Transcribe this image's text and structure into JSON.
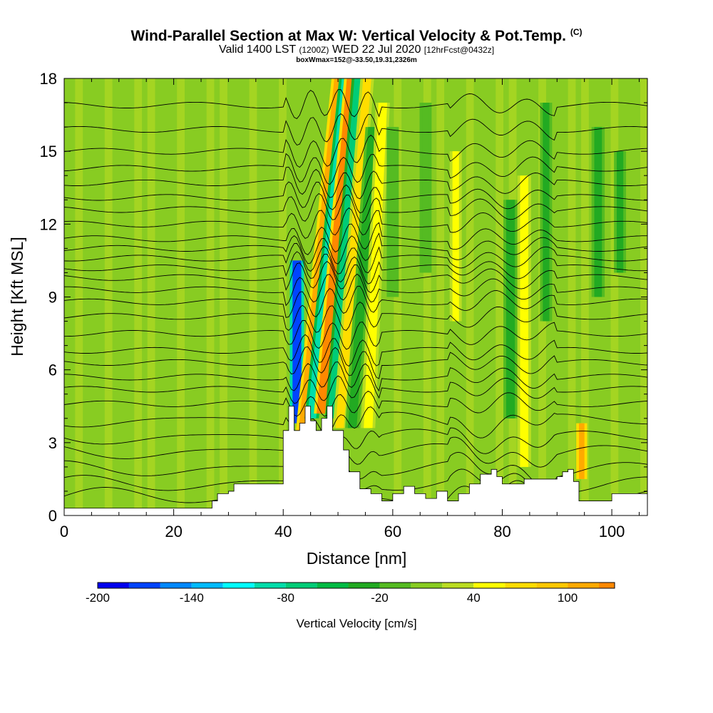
{
  "header": {
    "title": "Wind-Parallel Section at Max W: Vertical Velocity & Pot.Temp.",
    "copyright_mark": "(C)",
    "valid_prefix": "Valid 1400 LST",
    "valid_utc": "(1200Z)",
    "valid_date": "WED 22 Jul 2020",
    "forecast_info": "[12hrFcst@0432z]",
    "box_info": "boxWmax=152@-33.50,19.31,2326m"
  },
  "chart_data": {
    "type": "heatmap",
    "xlabel": "Distance [nm]",
    "ylabel": "Height [Kft MSL]",
    "xlim": [
      0,
      106.5
    ],
    "ylim": [
      0,
      18
    ],
    "x_ticks": [
      0,
      20,
      40,
      60,
      80,
      100
    ],
    "y_ticks": [
      0,
      3,
      6,
      9,
      12,
      15,
      18
    ],
    "background_level_cm_s": 10,
    "updraft_downdraft_bands": [
      {
        "x_center": 42.5,
        "x_width": 1.6,
        "y_from": 3.8,
        "y_to": 10.5,
        "w": -170
      },
      {
        "x_center": 43.5,
        "x_width": 1.4,
        "y_from": 3.5,
        "y_to": 18,
        "w": 110,
        "slope": 0.45
      },
      {
        "x_center": 45.2,
        "x_width": 1.6,
        "y_from": 4.0,
        "y_to": 18,
        "w": -100,
        "slope": 0.45
      },
      {
        "x_center": 47.0,
        "x_width": 1.8,
        "y_from": 4.2,
        "y_to": 18,
        "w": 130,
        "slope": 0.4
      },
      {
        "x_center": 48.8,
        "x_width": 1.4,
        "y_from": 4.0,
        "y_to": 18,
        "w": -70,
        "slope": 0.35
      },
      {
        "x_center": 50.3,
        "x_width": 1.5,
        "y_from": 3.6,
        "y_to": 18,
        "w": 60,
        "slope": 0.35
      },
      {
        "x_center": 52.6,
        "x_width": 1.6,
        "y_from": 3.6,
        "y_to": 16,
        "w": -40,
        "slope": 0.3
      },
      {
        "x_center": 55.5,
        "x_width": 1.6,
        "y_from": 3.6,
        "y_to": 17,
        "w": 50,
        "slope": 0.2
      },
      {
        "x_center": 60.0,
        "x_width": 1.2,
        "y_from": 9,
        "y_to": 16,
        "w": -20
      },
      {
        "x_center": 66.0,
        "x_width": 1.2,
        "y_from": 10,
        "y_to": 17,
        "w": -20
      },
      {
        "x_center": 71.5,
        "x_width": 1.2,
        "y_from": 8,
        "y_to": 15,
        "w": 40
      },
      {
        "x_center": 81.5,
        "x_width": 1.6,
        "y_from": 4,
        "y_to": 13,
        "w": -40
      },
      {
        "x_center": 84.0,
        "x_width": 1.5,
        "y_from": 2,
        "y_to": 14,
        "w": 50
      },
      {
        "x_center": 88.0,
        "x_width": 1.2,
        "y_from": 8,
        "y_to": 17,
        "w": -30
      },
      {
        "x_center": 94.5,
        "x_width": 1.0,
        "y_from": 1.5,
        "y_to": 3.8,
        "w": 100
      },
      {
        "x_center": 97.5,
        "x_width": 1.4,
        "y_from": 9,
        "y_to": 16,
        "w": -40
      },
      {
        "x_center": 101.5,
        "x_width": 1.2,
        "y_from": 10,
        "y_to": 15,
        "w": -30
      }
    ],
    "potential_temperature_isentropes_base_kft": [
      0.8,
      1.3,
      1.9,
      2.6,
      3.2,
      3.9,
      4.6,
      5.2,
      5.7,
      6.3,
      6.8,
      7.5,
      8.2,
      8.8,
      9.3,
      9.8,
      10.2,
      10.6,
      11.0,
      11.4,
      12.0,
      12.6,
      13.1,
      13.7,
      14.3,
      15.0,
      15.9,
      16.9
    ],
    "terrain_profile": {
      "x": [
        0,
        27,
        27,
        28,
        28,
        30,
        30,
        31,
        31,
        40,
        40,
        41,
        41,
        42,
        42,
        43,
        43,
        44,
        44,
        45,
        45,
        46,
        46,
        47,
        47,
        48,
        48,
        49,
        49,
        51,
        51,
        52,
        52,
        54,
        54,
        56,
        56,
        58,
        58,
        60,
        60,
        62,
        62,
        64,
        64,
        66,
        66,
        68,
        68,
        70,
        70,
        72,
        72,
        74,
        74,
        76,
        76,
        78,
        78,
        79,
        79,
        80,
        80,
        82,
        82,
        84,
        84,
        90,
        90,
        91,
        91,
        92,
        92,
        93,
        93,
        94,
        94,
        100,
        100,
        106.5
      ],
      "y": [
        0.3,
        0.3,
        0.6,
        0.6,
        0.9,
        0.9,
        1.0,
        1.0,
        1.3,
        1.3,
        3.5,
        3.5,
        4.5,
        4.5,
        3.5,
        3.5,
        3.8,
        3.8,
        4.5,
        4.5,
        3.9,
        3.9,
        3.5,
        3.5,
        4.0,
        4.0,
        4.5,
        4.5,
        3.5,
        3.5,
        2.7,
        2.7,
        1.8,
        1.8,
        1.1,
        1.1,
        0.9,
        0.9,
        0.6,
        0.6,
        0.9,
        0.9,
        1.2,
        1.2,
        0.9,
        0.9,
        0.7,
        0.7,
        1.0,
        1.0,
        0.6,
        0.6,
        0.9,
        0.9,
        1.3,
        1.3,
        1.7,
        1.7,
        1.9,
        1.9,
        1.6,
        1.6,
        1.3,
        1.3,
        1.3,
        1.3,
        1.5,
        1.5,
        1.6,
        1.6,
        1.8,
        1.8,
        1.9,
        1.9,
        1.4,
        1.4,
        0.6,
        0.6,
        0.9,
        0.9
      ]
    },
    "colorbar": {
      "title": "Vertical Velocity [cm/s]",
      "tick_values": [
        -200,
        -140,
        -80,
        -20,
        40,
        100
      ],
      "tick_labels": [
        "-200",
        "-140",
        "-80",
        "-20",
        "40",
        "100"
      ],
      "min": -200,
      "max": 130,
      "step": 20,
      "colors": [
        "#0000ee",
        "#0044ff",
        "#0088ff",
        "#00bbff",
        "#00ffff",
        "#00ddaa",
        "#00cc77",
        "#00bb44",
        "#22aa22",
        "#55bb22",
        "#88cc22",
        "#bbdd22",
        "#ffff00",
        "#ffdd00",
        "#ffc800",
        "#ffaa00",
        "#ff8800",
        "#ff6600",
        "#ff2200",
        "#ee0000",
        "#cc0033"
      ]
    }
  }
}
